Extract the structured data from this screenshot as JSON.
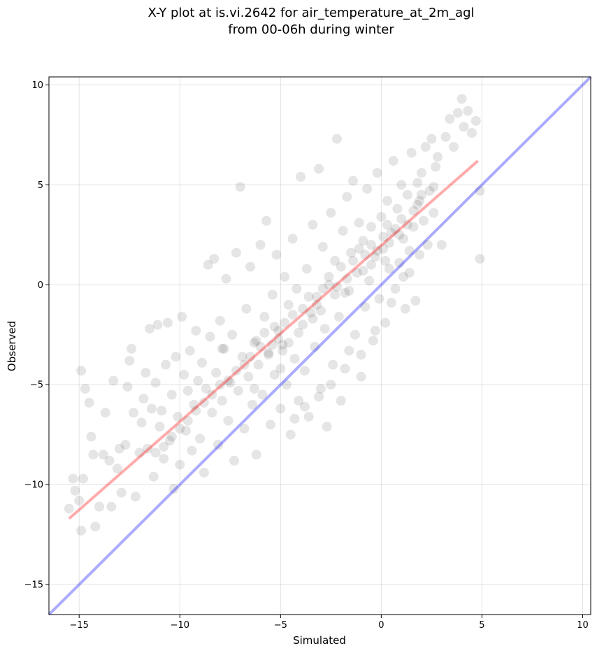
{
  "chart_data": {
    "type": "scatter",
    "title_lines": [
      "X-Y plot at is.vi.2642 for air_temperature_at_2m_agl",
      "from 00-06h during winter"
    ],
    "xlabel": "Simulated",
    "ylabel": "Observed",
    "xlim": [
      -16.5,
      10.4
    ],
    "ylim": [
      -16.5,
      10.4
    ],
    "xticks": [
      -15,
      -10,
      -5,
      0,
      5,
      10
    ],
    "yticks": [
      -15,
      -10,
      -5,
      0,
      5,
      10
    ],
    "xtick_labels": [
      "−15",
      "−10",
      "−5",
      "0",
      "5",
      "10"
    ],
    "ytick_labels": [
      "−15",
      "−10",
      "−5",
      "0",
      "5",
      "10"
    ],
    "grid": true,
    "lines": [
      {
        "role": "one-to-one",
        "color": "#0000ff",
        "opacity": 0.33,
        "x": [
          -16.5,
          10.4
        ],
        "y": [
          -16.5,
          10.4
        ]
      },
      {
        "role": "fit",
        "color": "#ff0000",
        "opacity": 0.33,
        "x": [
          -15.5,
          4.8
        ],
        "y": [
          -11.7,
          6.2
        ]
      }
    ],
    "points": [
      [
        -15.5,
        -11.2
      ],
      [
        -15.3,
        -9.7
      ],
      [
        -15.2,
        -10.3
      ],
      [
        -15.0,
        -10.8
      ],
      [
        -14.9,
        -12.3
      ],
      [
        -14.8,
        -9.7
      ],
      [
        -14.9,
        -4.3
      ],
      [
        -14.7,
        -5.2
      ],
      [
        -14.5,
        -5.9
      ],
      [
        -14.4,
        -7.6
      ],
      [
        -14.3,
        -8.5
      ],
      [
        -14.2,
        -12.1
      ],
      [
        -14.0,
        -11.1
      ],
      [
        -13.8,
        -8.5
      ],
      [
        -13.7,
        -6.4
      ],
      [
        -13.5,
        -8.8
      ],
      [
        -13.4,
        -11.1
      ],
      [
        -13.3,
        -4.8
      ],
      [
        -13.1,
        -9.2
      ],
      [
        -13.0,
        -8.2
      ],
      [
        -12.9,
        -10.4
      ],
      [
        -12.7,
        -8.0
      ],
      [
        -12.6,
        -5.1
      ],
      [
        -12.5,
        -3.8
      ],
      [
        -12.4,
        -3.2
      ],
      [
        -12.3,
        -6.4
      ],
      [
        -12.2,
        -10.6
      ],
      [
        -12.0,
        -8.4
      ],
      [
        -11.9,
        -6.9
      ],
      [
        -11.8,
        -5.7
      ],
      [
        -11.7,
        -4.4
      ],
      [
        -11.6,
        -8.2
      ],
      [
        -11.5,
        -2.2
      ],
      [
        -11.4,
        -6.2
      ],
      [
        -11.3,
        -9.6
      ],
      [
        -11.2,
        -4.9
      ],
      [
        -11.1,
        -2.0
      ],
      [
        -11.0,
        -7.1
      ],
      [
        -10.9,
        -6.3
      ],
      [
        -10.8,
        -8.7
      ],
      [
        -10.7,
        -4.0
      ],
      [
        -10.6,
        -1.9
      ],
      [
        -10.5,
        -7.8
      ],
      [
        -10.4,
        -5.5
      ],
      [
        -10.3,
        -10.2
      ],
      [
        -10.2,
        -3.6
      ],
      [
        -10.1,
        -6.6
      ],
      [
        -10.0,
        -9.0
      ],
      [
        -9.9,
        -1.6
      ],
      [
        -9.8,
        -4.5
      ],
      [
        -9.7,
        -7.3
      ],
      [
        -9.6,
        -5.3
      ],
      [
        -9.5,
        -3.3
      ],
      [
        -9.4,
        -8.3
      ],
      [
        -9.3,
        -6.0
      ],
      [
        -9.2,
        -2.3
      ],
      [
        -9.1,
        -4.8
      ],
      [
        -9.0,
        -7.7
      ],
      [
        -8.9,
        -3.9
      ],
      [
        -8.8,
        -9.4
      ],
      [
        -8.7,
        -5.2
      ],
      [
        -8.6,
        1.0
      ],
      [
        -8.5,
        -2.6
      ],
      [
        -8.4,
        -6.4
      ],
      [
        -8.3,
        1.3
      ],
      [
        -8.2,
        -4.4
      ],
      [
        -8.1,
        -8.0
      ],
      [
        -8.0,
        -1.8
      ],
      [
        -7.9,
        -5.8
      ],
      [
        -7.8,
        -3.2
      ],
      [
        -7.7,
        0.3
      ],
      [
        -7.6,
        -6.8
      ],
      [
        -7.5,
        -4.9
      ],
      [
        -7.4,
        -2.5
      ],
      [
        -7.3,
        -8.8
      ],
      [
        -7.2,
        1.6
      ],
      [
        -7.1,
        -5.3
      ],
      [
        -7.0,
        4.9
      ],
      [
        -6.9,
        -3.6
      ],
      [
        -6.8,
        -7.2
      ],
      [
        -6.7,
        -1.2
      ],
      [
        -6.6,
        -4.6
      ],
      [
        -6.5,
        0.9
      ],
      [
        -6.4,
        -6.0
      ],
      [
        -6.3,
        -2.9
      ],
      [
        -6.2,
        -8.5
      ],
      [
        -6.1,
        -4.0
      ],
      [
        -6.0,
        2.0
      ],
      [
        -5.9,
        -5.5
      ],
      [
        -5.8,
        -1.6
      ],
      [
        -5.7,
        3.2
      ],
      [
        -5.6,
        -3.4
      ],
      [
        -5.5,
        -7.0
      ],
      [
        -5.4,
        -0.5
      ],
      [
        -5.3,
        -4.5
      ],
      [
        -5.2,
        1.5
      ],
      [
        -5.1,
        -2.3
      ],
      [
        -5.0,
        -6.2
      ],
      [
        -4.9,
        -3.0
      ],
      [
        -4.8,
        0.4
      ],
      [
        -4.7,
        -5.0
      ],
      [
        -4.6,
        -1.0
      ],
      [
        -4.5,
        -7.5
      ],
      [
        -4.4,
        2.3
      ],
      [
        -4.3,
        -3.7
      ],
      [
        -4.2,
        -0.2
      ],
      [
        -4.1,
        -5.8
      ],
      [
        -4.0,
        5.4
      ],
      [
        -3.9,
        -2.0
      ],
      [
        -3.8,
        -4.3
      ],
      [
        -3.7,
        0.8
      ],
      [
        -3.6,
        -6.6
      ],
      [
        -3.5,
        -1.4
      ],
      [
        -3.4,
        3.0
      ],
      [
        -3.3,
        -3.1
      ],
      [
        -3.2,
        -0.6
      ],
      [
        -3.1,
        5.8
      ],
      [
        -3.0,
        -5.2
      ],
      [
        -2.9,
        1.9
      ],
      [
        -2.8,
        -2.2
      ],
      [
        -2.7,
        -7.1
      ],
      [
        -2.6,
        0.0
      ],
      [
        -2.5,
        3.6
      ],
      [
        -2.4,
        -4.0
      ],
      [
        -2.3,
        1.2
      ],
      [
        -2.2,
        7.3
      ],
      [
        -2.1,
        -1.6
      ],
      [
        -2.0,
        -5.8
      ],
      [
        -1.9,
        2.7
      ],
      [
        -1.8,
        -0.4
      ],
      [
        -1.7,
        4.4
      ],
      [
        -1.6,
        -3.3
      ],
      [
        -1.5,
        1.6
      ],
      [
        -1.4,
        5.2
      ],
      [
        -1.3,
        -2.5
      ],
      [
        -1.2,
        0.6
      ],
      [
        -1.1,
        3.1
      ],
      [
        -1.0,
        -4.6
      ],
      [
        -0.9,
        2.2
      ],
      [
        -0.8,
        -1.1
      ],
      [
        -0.7,
        4.8
      ],
      [
        -0.6,
        0.2
      ],
      [
        -0.5,
        2.9
      ],
      [
        -0.4,
        -2.8
      ],
      [
        -0.3,
        1.4
      ],
      [
        -0.2,
        5.6
      ],
      [
        -0.1,
        -0.7
      ],
      [
        0.0,
        3.4
      ],
      [
        0.1,
        1.8
      ],
      [
        0.2,
        -1.9
      ],
      [
        0.3,
        4.2
      ],
      [
        0.4,
        0.8
      ],
      [
        0.5,
        2.6
      ],
      [
        0.6,
        6.2
      ],
      [
        0.7,
        -0.2
      ],
      [
        0.8,
        3.8
      ],
      [
        0.9,
        1.1
      ],
      [
        1.0,
        5.0
      ],
      [
        1.1,
        2.3
      ],
      [
        1.2,
        -1.2
      ],
      [
        1.3,
        4.5
      ],
      [
        1.4,
        0.6
      ],
      [
        1.5,
        6.6
      ],
      [
        1.6,
        2.9
      ],
      [
        1.7,
        -0.8
      ],
      [
        1.8,
        4.0
      ],
      [
        1.9,
        1.5
      ],
      [
        2.0,
        5.6
      ],
      [
        2.1,
        3.2
      ],
      [
        2.2,
        6.9
      ],
      [
        2.3,
        2.0
      ],
      [
        2.4,
        4.7
      ],
      [
        2.5,
        7.3
      ],
      [
        2.6,
        3.6
      ],
      [
        2.7,
        5.9
      ],
      [
        2.8,
        6.4
      ],
      [
        3.0,
        2.0
      ],
      [
        3.2,
        7.4
      ],
      [
        3.4,
        8.3
      ],
      [
        3.6,
        6.9
      ],
      [
        3.8,
        8.6
      ],
      [
        4.0,
        9.3
      ],
      [
        4.1,
        7.9
      ],
      [
        4.3,
        8.7
      ],
      [
        4.5,
        7.6
      ],
      [
        4.7,
        8.2
      ],
      [
        4.9,
        4.7
      ],
      [
        4.9,
        1.3
      ],
      [
        -6.2,
        -2.8
      ],
      [
        -5.8,
        -2.4
      ],
      [
        -5.4,
        -3.0
      ],
      [
        -5.1,
        -2.7
      ],
      [
        -4.8,
        -1.9
      ],
      [
        -4.6,
        -2.9
      ],
      [
        -5.6,
        -3.5
      ],
      [
        -5.3,
        -2.1
      ],
      [
        -4.9,
        -3.3
      ],
      [
        -4.4,
        -1.5
      ],
      [
        -3.9,
        -1.2
      ],
      [
        -3.6,
        -0.6
      ],
      [
        -3.2,
        -1.0
      ],
      [
        -2.9,
        -0.2
      ],
      [
        -2.6,
        0.4
      ],
      [
        -2.3,
        -0.5
      ],
      [
        -2.0,
        0.9
      ],
      [
        -1.7,
        0.3
      ],
      [
        -1.4,
        1.2
      ],
      [
        -1.1,
        1.8
      ],
      [
        -0.8,
        1.5
      ],
      [
        -0.5,
        2.0
      ],
      [
        -0.2,
        1.7
      ],
      [
        0.1,
        2.4
      ],
      [
        0.4,
        2.1
      ],
      [
        0.7,
        2.8
      ],
      [
        1.0,
        3.3
      ],
      [
        1.3,
        3.0
      ],
      [
        1.6,
        3.7
      ],
      [
        1.9,
        4.2
      ],
      [
        -7.6,
        -4.8
      ],
      [
        -7.2,
        -4.3
      ],
      [
        -6.8,
        -4.0
      ],
      [
        -6.5,
        -3.6
      ],
      [
        -8.0,
        -5.0
      ],
      [
        -8.4,
        -5.5
      ],
      [
        -8.8,
        -5.9
      ],
      [
        -9.2,
        -6.3
      ],
      [
        -9.6,
        -6.8
      ],
      [
        -10.0,
        -7.2
      ],
      [
        -10.4,
        -7.6
      ],
      [
        -10.8,
        -8.1
      ],
      [
        -11.2,
        -8.4
      ],
      [
        -6.0,
        -3.1
      ],
      [
        -3.4,
        -1.7
      ],
      [
        -2.2,
        -0.1
      ],
      [
        0.2,
        1.2
      ],
      [
        0.9,
        2.5
      ],
      [
        1.4,
        1.7
      ],
      [
        2.0,
        4.5
      ],
      [
        -1.0,
        -3.5
      ],
      [
        -0.3,
        -2.3
      ],
      [
        0.5,
        -0.9
      ],
      [
        1.1,
        0.4
      ],
      [
        -1.8,
        -4.2
      ],
      [
        -2.5,
        -5.0
      ],
      [
        -3.1,
        -5.6
      ],
      [
        -3.8,
        -6.1
      ],
      [
        -4.3,
        -6.7
      ],
      [
        -0.5,
        1.0
      ],
      [
        -5.0,
        -4.2
      ],
      [
        -4.1,
        -2.4
      ],
      [
        -3.0,
        -1.3
      ],
      [
        -1.6,
        -0.3
      ],
      [
        -0.9,
        0.7
      ],
      [
        0.3,
        3.0
      ],
      [
        1.8,
        5.1
      ],
      [
        2.6,
        4.9
      ],
      [
        -7.9,
        -3.2
      ],
      [
        -6.3,
        -5.2
      ]
    ]
  }
}
